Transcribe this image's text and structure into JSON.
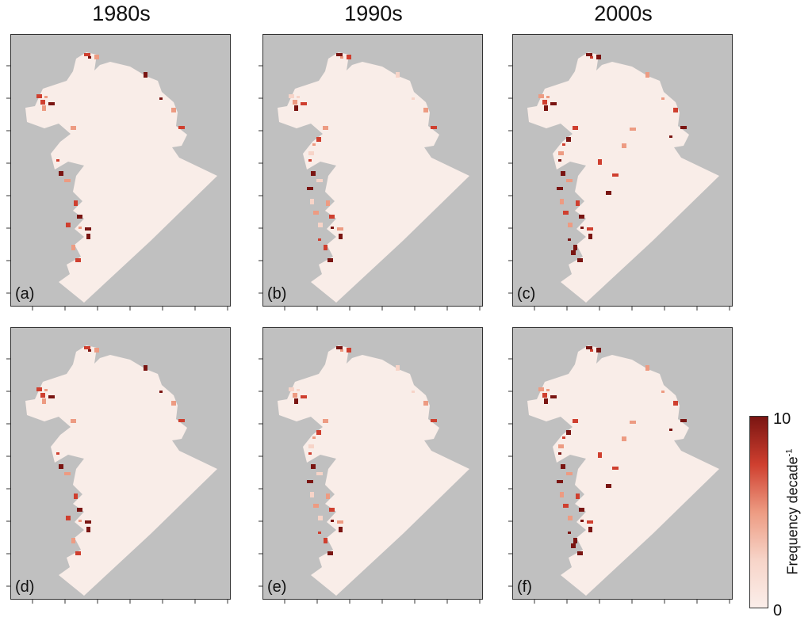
{
  "columns": [
    "1980s",
    "1990s",
    "2000s"
  ],
  "panels": [
    {
      "label": "(a)",
      "row": 0,
      "col": 0,
      "intensity": 1
    },
    {
      "label": "(b)",
      "row": 0,
      "col": 1,
      "intensity": 2
    },
    {
      "label": "(c)",
      "row": 0,
      "col": 2,
      "intensity": 3
    },
    {
      "label": "(d)",
      "row": 1,
      "col": 0,
      "intensity": 1
    },
    {
      "label": "(e)",
      "row": 1,
      "col": 1,
      "intensity": 2
    },
    {
      "label": "(f)",
      "row": 1,
      "col": 2,
      "intensity": 3
    }
  ],
  "colorbar": {
    "max_label": "10",
    "min_label": "0",
    "label": "Frequency decade",
    "label_exponent": "-1",
    "colors": [
      "#fbeeea",
      "#f7d4c8",
      "#ed9b82",
      "#cf3f2f",
      "#7a1512"
    ]
  },
  "colors": {
    "land": "#c0c0c0",
    "water": "#f9ede8"
  }
}
